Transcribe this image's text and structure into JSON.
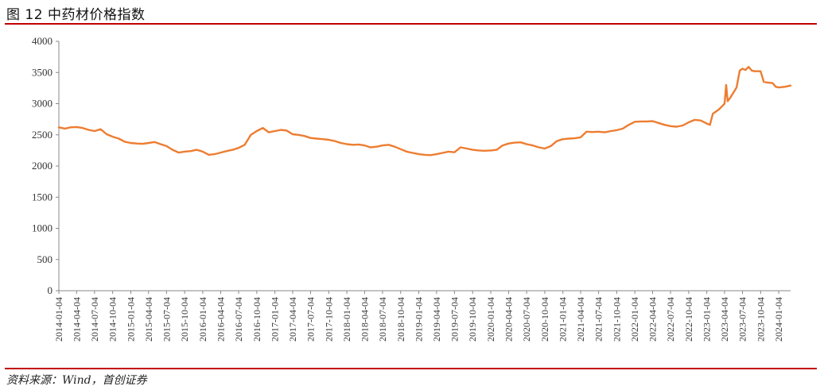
{
  "figure": {
    "title": "图 12  中药材价格指数",
    "source": "资料来源：Wind，首创证券"
  },
  "colors": {
    "line": "#ED7D31",
    "rule": "#c00000",
    "axis": "#888888"
  },
  "chart_data": {
    "type": "line",
    "title": "",
    "xlabel": "",
    "ylabel": "",
    "ylim": [
      0,
      4000
    ],
    "yticks": [
      0,
      500,
      1000,
      1500,
      2000,
      2500,
      3000,
      3500,
      4000
    ],
    "x_start": "2014-01-04",
    "x_end": "2024-03-04",
    "xticks": [
      "2014-01-04",
      "2014-04-04",
      "2014-07-04",
      "2014-10-04",
      "2015-01-04",
      "2015-04-04",
      "2015-07-04",
      "2015-10-04",
      "2016-01-04",
      "2016-04-04",
      "2016-07-04",
      "2016-10-04",
      "2017-01-04",
      "2017-04-04",
      "2017-07-04",
      "2017-10-04",
      "2018-01-04",
      "2018-04-04",
      "2018-07-04",
      "2018-10-04",
      "2019-01-04",
      "2019-04-04",
      "2019-07-04",
      "2019-10-04",
      "2020-01-04",
      "2020-04-04",
      "2020-07-04",
      "2020-10-04",
      "2021-01-04",
      "2021-04-04",
      "2021-07-04",
      "2021-10-04",
      "2022-01-04",
      "2022-04-04",
      "2022-07-04",
      "2022-10-04",
      "2023-01-04",
      "2023-04-04",
      "2023-07-04",
      "2023-10-04",
      "2024-01-04"
    ],
    "grid": false,
    "legend": "none",
    "series": [
      {
        "name": "",
        "points": [
          [
            "2014-01-04",
            2620
          ],
          [
            "2014-02-04",
            2600
          ],
          [
            "2014-03-04",
            2620
          ],
          [
            "2014-04-04",
            2625
          ],
          [
            "2014-05-04",
            2610
          ],
          [
            "2014-06-04",
            2580
          ],
          [
            "2014-07-04",
            2560
          ],
          [
            "2014-08-04",
            2590
          ],
          [
            "2014-09-04",
            2510
          ],
          [
            "2014-10-04",
            2470
          ],
          [
            "2014-11-04",
            2440
          ],
          [
            "2014-12-04",
            2390
          ],
          [
            "2015-01-04",
            2370
          ],
          [
            "2015-02-04",
            2360
          ],
          [
            "2015-03-04",
            2355
          ],
          [
            "2015-04-04",
            2370
          ],
          [
            "2015-05-04",
            2385
          ],
          [
            "2015-06-04",
            2350
          ],
          [
            "2015-07-04",
            2320
          ],
          [
            "2015-08-04",
            2260
          ],
          [
            "2015-09-04",
            2215
          ],
          [
            "2015-10-04",
            2230
          ],
          [
            "2015-11-04",
            2240
          ],
          [
            "2015-12-04",
            2260
          ],
          [
            "2016-01-04",
            2230
          ],
          [
            "2016-02-04",
            2180
          ],
          [
            "2016-03-04",
            2190
          ],
          [
            "2016-04-04",
            2215
          ],
          [
            "2016-05-04",
            2240
          ],
          [
            "2016-06-04",
            2260
          ],
          [
            "2016-07-04",
            2290
          ],
          [
            "2016-08-04",
            2340
          ],
          [
            "2016-09-04",
            2500
          ],
          [
            "2016-10-04",
            2560
          ],
          [
            "2016-11-04",
            2610
          ],
          [
            "2016-12-04",
            2540
          ],
          [
            "2017-01-04",
            2560
          ],
          [
            "2017-02-04",
            2580
          ],
          [
            "2017-03-04",
            2570
          ],
          [
            "2017-04-04",
            2510
          ],
          [
            "2017-05-04",
            2500
          ],
          [
            "2017-06-04",
            2480
          ],
          [
            "2017-07-04",
            2450
          ],
          [
            "2017-08-04",
            2440
          ],
          [
            "2017-09-04",
            2430
          ],
          [
            "2017-10-04",
            2420
          ],
          [
            "2017-11-04",
            2400
          ],
          [
            "2017-12-04",
            2370
          ],
          [
            "2018-01-04",
            2350
          ],
          [
            "2018-02-04",
            2340
          ],
          [
            "2018-03-04",
            2345
          ],
          [
            "2018-04-04",
            2330
          ],
          [
            "2018-05-04",
            2300
          ],
          [
            "2018-06-04",
            2310
          ],
          [
            "2018-07-04",
            2330
          ],
          [
            "2018-08-04",
            2340
          ],
          [
            "2018-09-04",
            2310
          ],
          [
            "2018-10-04",
            2270
          ],
          [
            "2018-11-04",
            2230
          ],
          [
            "2018-12-04",
            2210
          ],
          [
            "2019-01-04",
            2190
          ],
          [
            "2019-02-04",
            2180
          ],
          [
            "2019-03-04",
            2175
          ],
          [
            "2019-04-04",
            2190
          ],
          [
            "2019-05-04",
            2210
          ],
          [
            "2019-06-04",
            2230
          ],
          [
            "2019-07-04",
            2220
          ],
          [
            "2019-08-04",
            2300
          ],
          [
            "2019-09-04",
            2280
          ],
          [
            "2019-10-04",
            2260
          ],
          [
            "2019-11-04",
            2250
          ],
          [
            "2019-12-04",
            2245
          ],
          [
            "2020-01-04",
            2250
          ],
          [
            "2020-02-04",
            2260
          ],
          [
            "2020-03-04",
            2330
          ],
          [
            "2020-04-04",
            2360
          ],
          [
            "2020-05-04",
            2375
          ],
          [
            "2020-06-04",
            2380
          ],
          [
            "2020-07-04",
            2350
          ],
          [
            "2020-08-04",
            2330
          ],
          [
            "2020-09-04",
            2300
          ],
          [
            "2020-10-04",
            2280
          ],
          [
            "2020-11-04",
            2320
          ],
          [
            "2020-12-04",
            2400
          ],
          [
            "2021-01-04",
            2430
          ],
          [
            "2021-02-04",
            2440
          ],
          [
            "2021-03-04",
            2445
          ],
          [
            "2021-04-04",
            2460
          ],
          [
            "2021-05-04",
            2550
          ],
          [
            "2021-06-04",
            2545
          ],
          [
            "2021-07-04",
            2550
          ],
          [
            "2021-08-04",
            2540
          ],
          [
            "2021-09-04",
            2560
          ],
          [
            "2021-10-04",
            2575
          ],
          [
            "2021-11-04",
            2600
          ],
          [
            "2021-12-04",
            2660
          ],
          [
            "2022-01-04",
            2710
          ],
          [
            "2022-02-04",
            2715
          ],
          [
            "2022-03-04",
            2715
          ],
          [
            "2022-04-04",
            2720
          ],
          [
            "2022-05-04",
            2690
          ],
          [
            "2022-06-04",
            2660
          ],
          [
            "2022-07-04",
            2640
          ],
          [
            "2022-08-04",
            2630
          ],
          [
            "2022-09-04",
            2650
          ],
          [
            "2022-10-04",
            2700
          ],
          [
            "2022-11-04",
            2740
          ],
          [
            "2022-12-04",
            2730
          ],
          [
            "2023-01-04",
            2680
          ],
          [
            "2023-01-20",
            2660
          ],
          [
            "2023-02-04",
            2840
          ],
          [
            "2023-03-04",
            2900
          ],
          [
            "2023-03-20",
            2950
          ],
          [
            "2023-04-04",
            3000
          ],
          [
            "2023-04-12",
            3300
          ],
          [
            "2023-04-20",
            3040
          ],
          [
            "2023-05-04",
            3100
          ],
          [
            "2023-06-04",
            3260
          ],
          [
            "2023-06-20",
            3530
          ],
          [
            "2023-07-04",
            3560
          ],
          [
            "2023-07-20",
            3540
          ],
          [
            "2023-08-04",
            3590
          ],
          [
            "2023-08-20",
            3530
          ],
          [
            "2023-09-04",
            3520
          ],
          [
            "2023-10-04",
            3520
          ],
          [
            "2023-10-20",
            3350
          ],
          [
            "2023-11-04",
            3340
          ],
          [
            "2023-12-04",
            3330
          ],
          [
            "2023-12-20",
            3270
          ],
          [
            "2024-01-04",
            3260
          ],
          [
            "2024-02-04",
            3270
          ],
          [
            "2024-03-04",
            3290
          ]
        ]
      }
    ]
  }
}
